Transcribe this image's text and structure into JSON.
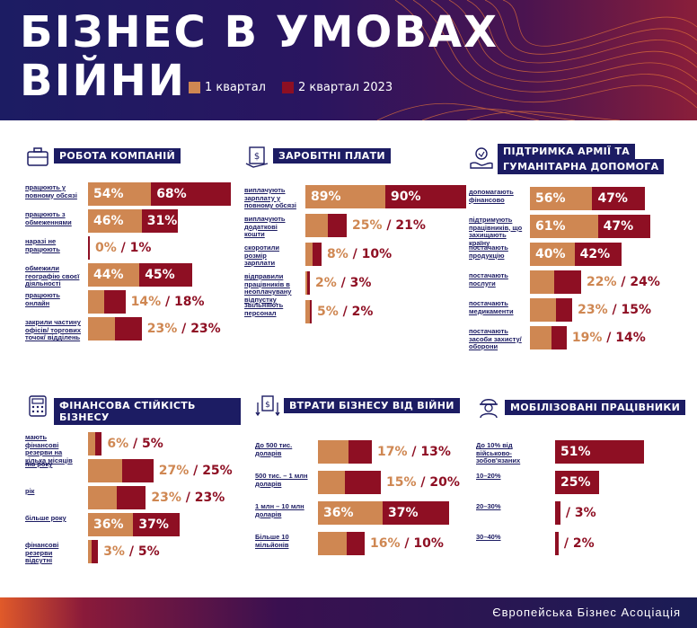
{
  "header": {
    "title_line1": "БІЗНЕС В УМОВАХ",
    "title_line2": "ВІЙНИ",
    "legend": [
      {
        "label": "1 квартал",
        "color": "#cf8752"
      },
      {
        "label": "2 квартал 2023",
        "color": "#8e0f23"
      }
    ]
  },
  "colors": {
    "q1": "#cf8752",
    "q2": "#8e0f23",
    "navy": "#1c1c63"
  },
  "panels": {
    "company": {
      "icon": "briefcase-icon",
      "title": "РОБОТА КОМПАНІЙ",
      "rows": [
        {
          "label": "працюють у повному обсязі",
          "q1": "54%",
          "q2": "68%",
          "v1": 54,
          "v2": 68
        },
        {
          "label": "працюють з обмеженнями",
          "q1": "46%",
          "q2": "31%",
          "v1": 46,
          "v2": 31
        },
        {
          "label": "наразі не працюють",
          "q1": "0%",
          "q2": "1%",
          "v1": 0,
          "v2": 1
        },
        {
          "label": "обмежили географію своєї діяльності",
          "q1": "44%",
          "q2": "45%",
          "v1": 44,
          "v2": 45
        },
        {
          "label": "працюють онлайн",
          "q1": "14%",
          "q2": "18%",
          "v1": 14,
          "v2": 18
        },
        {
          "label": "закрили частину офісів/ торгових точок/ відділень",
          "q1": "23%",
          "q2": "23%",
          "v1": 23,
          "v2": 23
        }
      ]
    },
    "salary": {
      "icon": "salary-icon",
      "title": "ЗАРОБІТНІ ПЛАТИ",
      "rows": [
        {
          "label": "виплачують зарплату у повному обсязі",
          "q1": "89%",
          "q2": "90%",
          "v1": 89,
          "v2": 90
        },
        {
          "label": "виплачують додаткові кошти",
          "q1": "25%",
          "q2": "21%",
          "v1": 25,
          "v2": 21
        },
        {
          "label": "скоротили розмір зарплати",
          "q1": "8%",
          "q2": "10%",
          "v1": 8,
          "v2": 10
        },
        {
          "label": "відправили працівників в неоплачувану відпустку",
          "q1": "2%",
          "q2": "3%",
          "v1": 2,
          "v2": 3
        },
        {
          "label": "звільняють персонал",
          "q1": "5%",
          "q2": "2%",
          "v1": 5,
          "v2": 2
        }
      ]
    },
    "support": {
      "icon": "charity-icon",
      "title_line1": "ПІДТРИМКА АРМІЇ ТА",
      "title_line2": "ГУМАНІТАРНА ДОПОМОГА",
      "rows": [
        {
          "label": "допомагають фінансово",
          "q1": "56%",
          "q2": "47%",
          "v1": 56,
          "v2": 47
        },
        {
          "label": "підтримують працівників, що захищають країну",
          "q1": "61%",
          "q2": "47%",
          "v1": 61,
          "v2": 47
        },
        {
          "label": "постачають продукцію",
          "q1": "40%",
          "q2": "42%",
          "v1": 40,
          "v2": 42
        },
        {
          "label": "постачають послуги",
          "q1": "22%",
          "q2": "24%",
          "v1": 22,
          "v2": 24
        },
        {
          "label": "постачають медикаменти",
          "q1": "23%",
          "q2": "15%",
          "v1": 23,
          "v2": 15
        },
        {
          "label": "постачають засоби захисту/ оборони",
          "q1": "19%",
          "q2": "14%",
          "v1": 19,
          "v2": 14
        }
      ]
    },
    "finance": {
      "icon": "calculator-icon",
      "title": "ФІНАНСОВА СТІЙКІСТЬ БІЗНЕСУ",
      "rows": [
        {
          "label": "мають фінансові резерви на кілька місяців",
          "q1": "6%",
          "q2": "5%",
          "v1": 6,
          "v2": 5
        },
        {
          "label": "пів року",
          "q1": "27%",
          "q2": "25%",
          "v1": 27,
          "v2": 25
        },
        {
          "label": "рік",
          "q1": "23%",
          "q2": "23%",
          "v1": 23,
          "v2": 23
        },
        {
          "label": "більше року",
          "q1": "36%",
          "q2": "37%",
          "v1": 36,
          "v2": 37
        },
        {
          "label": "фінансові резерви відсутні",
          "q1": "3%",
          "q2": "5%",
          "v1": 3,
          "v2": 5
        }
      ]
    },
    "losses": {
      "icon": "money-loss-icon",
      "title": "ВТРАТИ БІЗНЕСУ ВІД ВІЙНИ",
      "rows": [
        {
          "label": "До 500 тис. доларів",
          "q1": "17%",
          "q2": "13%",
          "v1": 17,
          "v2": 13
        },
        {
          "label": "500 тис. – 1 млн доларів",
          "q1": "15%",
          "q2": "20%",
          "v1": 15,
          "v2": 20
        },
        {
          "label": "1 млн – 10 млн доларів",
          "q1": "36%",
          "q2": "37%",
          "v1": 36,
          "v2": 37
        },
        {
          "label": "Більше 10 мільйонів",
          "q1": "16%",
          "q2": "10%",
          "v1": 16,
          "v2": 10
        }
      ]
    },
    "mobilized": {
      "icon": "soldier-icon",
      "title": "МОБІЛІЗОВАНІ ПРАЦІВНИКИ",
      "rows": [
        {
          "label": "До 10% від військово-зобов'язаних",
          "q2": "51%",
          "v2": 51
        },
        {
          "label": "10–20%",
          "q2": "25%",
          "v2": 25
        },
        {
          "label": "20–30%",
          "q2": "3%",
          "v2": 3
        },
        {
          "label": "30–40%",
          "q2": "2%",
          "v2": 2
        }
      ]
    }
  },
  "footer": {
    "org": "Європейська Бізнес Асоціація"
  }
}
